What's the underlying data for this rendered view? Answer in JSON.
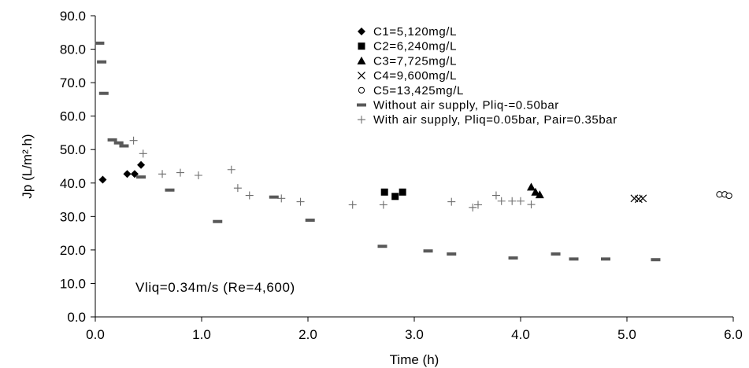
{
  "chart_data": {
    "type": "scatter",
    "title": "",
    "xlabel": "Time (h)",
    "ylabel": "Jp (L/m².h)",
    "xlim": [
      0,
      6
    ],
    "ylim": [
      0,
      90
    ],
    "x_ticks": [
      "0.0",
      "1.0",
      "2.0",
      "3.0",
      "4.0",
      "5.0",
      "6.0"
    ],
    "y_ticks": [
      "0.0",
      "10.0",
      "20.0",
      "30.0",
      "40.0",
      "50.0",
      "60.0",
      "70.0",
      "80.0",
      "90.0"
    ],
    "grid": false,
    "legend_position": "top-right",
    "annotation": "Vliq=0.34m/s (Re=4,600)",
    "series": [
      {
        "name": "C1=5,120mg/L",
        "marker": "diamond",
        "color": "#000000",
        "x": [
          0.07,
          0.3,
          0.37,
          0.43
        ],
        "y": [
          41.0,
          42.7,
          42.7,
          45.4
        ]
      },
      {
        "name": "C2=6,240mg/L",
        "marker": "square",
        "color": "#000000",
        "x": [
          2.72,
          2.82,
          2.89
        ],
        "y": [
          37.3,
          36.0,
          37.3
        ]
      },
      {
        "name": "C3=7,725mg/L",
        "marker": "triangle",
        "color": "#000000",
        "x": [
          4.1,
          4.14,
          4.18
        ],
        "y": [
          38.8,
          37.3,
          36.5
        ]
      },
      {
        "name": "C4=9,600mg/L",
        "marker": "x",
        "color": "#000000",
        "x": [
          5.07,
          5.11,
          5.15
        ],
        "y": [
          35.4,
          35.2,
          35.4
        ]
      },
      {
        "name": "C5=13,425mg/L",
        "marker": "circle-open",
        "color": "#000000",
        "x": [
          5.87,
          5.92,
          5.96
        ],
        "y": [
          36.6,
          36.6,
          36.2
        ]
      },
      {
        "name": "Without air supply, Pliq-=0.50bar",
        "marker": "dash",
        "color": "#595959",
        "x": [
          0.04,
          0.06,
          0.08,
          0.16,
          0.22,
          0.27,
          0.43,
          0.7,
          1.15,
          1.68,
          2.02,
          2.7,
          3.13,
          3.35,
          3.93,
          4.33,
          4.5,
          4.8,
          5.27
        ],
        "y": [
          81.8,
          76.2,
          66.8,
          52.9,
          52.0,
          51.1,
          41.8,
          37.9,
          28.5,
          35.8,
          28.9,
          21.1,
          19.7,
          18.8,
          17.6,
          18.8,
          17.3,
          17.3,
          17.1
        ]
      },
      {
        "name": "With air supply, Pliq=0.05bar, Pair=0.35bar",
        "marker": "plus",
        "color": "#6e6e6e",
        "x": [
          0.36,
          0.45,
          0.63,
          0.8,
          0.97,
          1.28,
          1.34,
          1.45,
          1.75,
          1.93,
          2.42,
          2.71,
          3.35,
          3.55,
          3.6,
          3.77,
          3.82,
          3.92,
          4.0,
          4.1
        ],
        "y": [
          52.7,
          48.8,
          42.7,
          43.1,
          42.3,
          44.0,
          38.5,
          36.3,
          35.4,
          34.4,
          33.5,
          33.5,
          34.4,
          32.7,
          33.5,
          36.3,
          34.6,
          34.6,
          34.6,
          33.6
        ]
      }
    ]
  }
}
